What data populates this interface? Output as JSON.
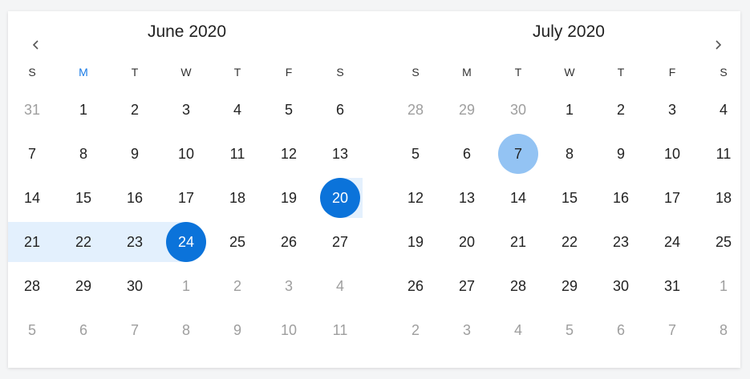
{
  "months": [
    {
      "title": "June 2020",
      "weekdays": [
        "S",
        "M",
        "T",
        "W",
        "T",
        "F",
        "S"
      ],
      "today_weekday_index": 1,
      "weeks": [
        [
          [
            "31",
            true
          ],
          [
            "1",
            false
          ],
          [
            "2",
            false
          ],
          [
            "3",
            false
          ],
          [
            "4",
            false
          ],
          [
            "5",
            false
          ],
          [
            "6",
            false
          ]
        ],
        [
          [
            "7",
            false
          ],
          [
            "8",
            false
          ],
          [
            "9",
            false
          ],
          [
            "10",
            false
          ],
          [
            "11",
            false
          ],
          [
            "12",
            false
          ],
          [
            "13",
            false
          ]
        ],
        [
          [
            "14",
            false
          ],
          [
            "15",
            false
          ],
          [
            "16",
            false
          ],
          [
            "17",
            false
          ],
          [
            "18",
            false
          ],
          [
            "19",
            false
          ],
          [
            "20",
            false
          ]
        ],
        [
          [
            "21",
            false
          ],
          [
            "22",
            false
          ],
          [
            "23",
            false
          ],
          [
            "24",
            false
          ],
          [
            "25",
            false
          ],
          [
            "26",
            false
          ],
          [
            "27",
            false
          ]
        ],
        [
          [
            "28",
            false
          ],
          [
            "29",
            false
          ],
          [
            "30",
            false
          ],
          [
            "1",
            true
          ],
          [
            "2",
            true
          ],
          [
            "3",
            true
          ],
          [
            "4",
            true
          ]
        ],
        [
          [
            "5",
            true
          ],
          [
            "6",
            true
          ],
          [
            "7",
            true
          ],
          [
            "8",
            true
          ],
          [
            "9",
            true
          ],
          [
            "10",
            true
          ],
          [
            "11",
            true
          ]
        ]
      ],
      "selected": [
        [
          2,
          6
        ],
        [
          3,
          3
        ]
      ],
      "hover": []
    },
    {
      "title": "July 2020",
      "weekdays": [
        "S",
        "M",
        "T",
        "W",
        "T",
        "F",
        "S"
      ],
      "today_weekday_index": -1,
      "weeks": [
        [
          [
            "28",
            true
          ],
          [
            "29",
            true
          ],
          [
            "30",
            true
          ],
          [
            "1",
            false
          ],
          [
            "2",
            false
          ],
          [
            "3",
            false
          ],
          [
            "4",
            false
          ]
        ],
        [
          [
            "5",
            false
          ],
          [
            "6",
            false
          ],
          [
            "7",
            false
          ],
          [
            "8",
            false
          ],
          [
            "9",
            false
          ],
          [
            "10",
            false
          ],
          [
            "11",
            false
          ]
        ],
        [
          [
            "12",
            false
          ],
          [
            "13",
            false
          ],
          [
            "14",
            false
          ],
          [
            "15",
            false
          ],
          [
            "16",
            false
          ],
          [
            "17",
            false
          ],
          [
            "18",
            false
          ]
        ],
        [
          [
            "19",
            false
          ],
          [
            "20",
            false
          ],
          [
            "21",
            false
          ],
          [
            "22",
            false
          ],
          [
            "23",
            false
          ],
          [
            "24",
            false
          ],
          [
            "25",
            false
          ]
        ],
        [
          [
            "26",
            false
          ],
          [
            "27",
            false
          ],
          [
            "28",
            false
          ],
          [
            "29",
            false
          ],
          [
            "30",
            false
          ],
          [
            "31",
            false
          ],
          [
            "1",
            true
          ]
        ],
        [
          [
            "2",
            true
          ],
          [
            "3",
            true
          ],
          [
            "4",
            true
          ],
          [
            "5",
            true
          ],
          [
            "6",
            true
          ],
          [
            "7",
            true
          ],
          [
            "8",
            true
          ]
        ]
      ],
      "selected": [],
      "hover": [
        [
          1,
          2
        ]
      ]
    }
  ],
  "nav": {
    "prev_icon": "chevron-left-icon",
    "next_icon": "chevron-right-icon"
  },
  "colors": {
    "accent": "#0b73da",
    "range": "#e3f0fd",
    "hover": "#93c3f3",
    "today": "#1a7be6",
    "muted": "#9e9e9e"
  }
}
